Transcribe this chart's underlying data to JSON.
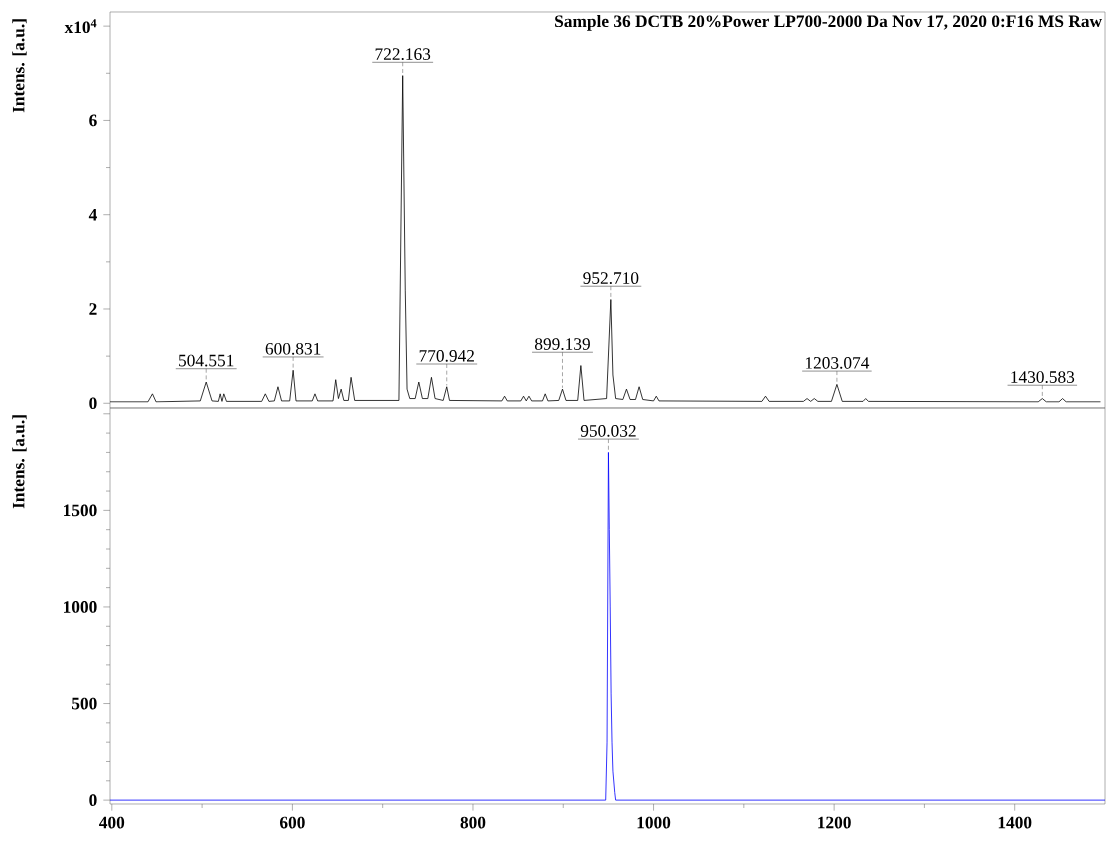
{
  "chart_data": [
    {
      "type": "line",
      "title": "Sample 36 DCTB 20%Power LP700-2000 Da Nov 17, 2020 0:F16 MS Raw",
      "ylabel": "Intens. [a.u.]",
      "color": "#000000",
      "tick_labels": "y",
      "x": [
        398,
        440,
        445,
        449,
        498,
        504.551,
        511,
        518,
        520,
        522,
        524,
        527,
        566,
        570,
        574,
        580,
        584,
        588,
        597,
        600.831,
        604,
        622,
        625,
        628,
        645,
        648,
        651,
        654,
        657,
        662,
        665,
        669,
        718,
        722.163,
        725,
        727,
        730,
        736,
        740,
        744,
        750,
        754,
        758,
        767,
        770.942,
        774,
        832,
        835,
        838,
        853,
        856,
        859,
        862,
        865,
        877,
        880,
        883,
        895,
        899.139,
        903,
        916,
        919.5,
        923,
        948,
        952.71,
        955,
        958,
        966,
        970,
        974,
        980,
        984,
        988,
        1000,
        1003,
        1006,
        1120,
        1124,
        1128,
        1166,
        1170,
        1174,
        1178,
        1182,
        1197,
        1203.074,
        1209,
        1232,
        1235,
        1238,
        1426,
        1430.583,
        1435,
        1449,
        1453,
        1457,
        1495
      ],
      "values": [
        0.03,
        0.03,
        0.2,
        0.03,
        0.05,
        0.45,
        0.05,
        0.04,
        0.2,
        0.04,
        0.2,
        0.04,
        0.04,
        0.2,
        0.04,
        0.05,
        0.35,
        0.05,
        0.05,
        0.7,
        0.05,
        0.05,
        0.2,
        0.05,
        0.05,
        0.5,
        0.1,
        0.3,
        0.06,
        0.06,
        0.55,
        0.06,
        0.06,
        6.95,
        2.4,
        0.3,
        0.1,
        0.1,
        0.45,
        0.1,
        0.1,
        0.55,
        0.1,
        0.06,
        0.35,
        0.06,
        0.05,
        0.15,
        0.05,
        0.05,
        0.15,
        0.05,
        0.15,
        0.05,
        0.05,
        0.2,
        0.05,
        0.06,
        0.3,
        0.06,
        0.06,
        0.8,
        0.06,
        0.1,
        2.2,
        0.6,
        0.1,
        0.08,
        0.3,
        0.08,
        0.08,
        0.35,
        0.08,
        0.05,
        0.15,
        0.05,
        0.04,
        0.15,
        0.04,
        0.04,
        0.1,
        0.04,
        0.1,
        0.04,
        0.04,
        0.4,
        0.04,
        0.04,
        0.1,
        0.04,
        0.03,
        0.1,
        0.03,
        0.03,
        0.1,
        0.03,
        0.03
      ],
      "xlim": [
        398,
        1500
      ],
      "ylim": [
        -0.1,
        8.3
      ],
      "yticks": [
        0,
        2,
        4,
        6,
        {
          "value": 8,
          "label": "x10$^{4}$"
        }
      ],
      "annotations": [
        {
          "text": "504.551",
          "x": 504.551,
          "y": 0.45
        },
        {
          "text": "600.831",
          "x": 600.831,
          "y": 0.7
        },
        {
          "text": "722.163",
          "x": 722.163,
          "y": 6.95
        },
        {
          "text": "770.942",
          "x": 770.942,
          "y": 0.35
        },
        {
          "text": "899.139",
          "x": 899.139,
          "y": 0.3
        },
        {
          "text": "952.710",
          "x": 952.71,
          "y": 2.2
        },
        {
          "text": "1203.074",
          "x": 1203.074,
          "y": 0.4
        },
        {
          "text": "1430.583",
          "x": 1430.583,
          "y": 0.1
        }
      ]
    },
    {
      "type": "line",
      "ylabel": "Intens. [a.u.]",
      "color": "#0000ff",
      "x": [
        398,
        947,
        948.5,
        950.032,
        951,
        952,
        953,
        954,
        955,
        957,
        958,
        1500
      ],
      "values": [
        0,
        0,
        300,
        1800,
        1400,
        1000,
        550,
        300,
        150,
        40,
        0,
        0
      ],
      "xlim": [
        398,
        1500
      ],
      "xticks": [
        400,
        600,
        800,
        1000,
        1200,
        1400
      ],
      "ylim": [
        -20,
        2030
      ],
      "yticks": [
        0,
        500,
        1000,
        1500,
        {
          "value": 2000,
          "label": null
        }
      ],
      "annotations": [
        {
          "text": "950.032",
          "x": 950.032,
          "y": 1800
        }
      ]
    }
  ]
}
